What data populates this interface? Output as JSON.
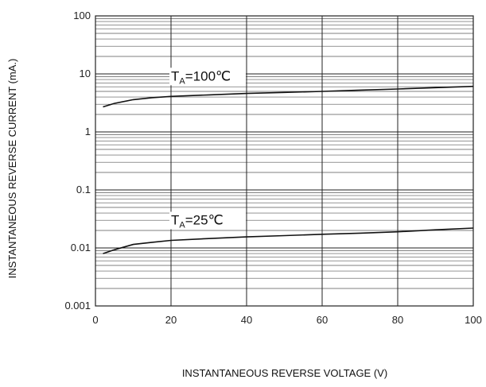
{
  "chart_data": {
    "type": "line",
    "xlabel": "INSTANTANEOUS REVERSE VOLTAGE (V)",
    "ylabel": "INSTANTANEOUS REVERSE CURRENT (mA.)",
    "xlim": [
      0,
      100
    ],
    "ylim": [
      0.001,
      100
    ],
    "yscale": "log",
    "grid": true,
    "x_ticks": [
      0,
      20,
      40,
      60,
      80,
      100
    ],
    "x_tick_labels": [
      "0",
      "20",
      "40",
      "60",
      "80",
      "100"
    ],
    "y_ticks": [
      0.001,
      0.01,
      0.1,
      1,
      10,
      100
    ],
    "y_tick_labels": [
      "0.001",
      "0.01",
      "0.1",
      "1",
      "10",
      "100"
    ],
    "series": [
      {
        "name": "TA=100℃",
        "label_main": "T",
        "label_sub": "A",
        "label_rest": "=100℃",
        "x": [
          2,
          5,
          10,
          15,
          20,
          30,
          40,
          50,
          60,
          70,
          80,
          90,
          100
        ],
        "y": [
          2.7,
          3.1,
          3.6,
          3.9,
          4.1,
          4.35,
          4.6,
          4.8,
          5.0,
          5.25,
          5.5,
          5.8,
          6.1
        ]
      },
      {
        "name": "TA=25℃",
        "label_main": "T",
        "label_sub": "A",
        "label_rest": "=25℃",
        "x": [
          2,
          5,
          10,
          15,
          20,
          30,
          40,
          50,
          60,
          70,
          80,
          90,
          100
        ],
        "y": [
          0.008,
          0.0093,
          0.0115,
          0.0125,
          0.0135,
          0.0145,
          0.0155,
          0.0163,
          0.0172,
          0.018,
          0.019,
          0.0205,
          0.022
        ]
      }
    ]
  }
}
